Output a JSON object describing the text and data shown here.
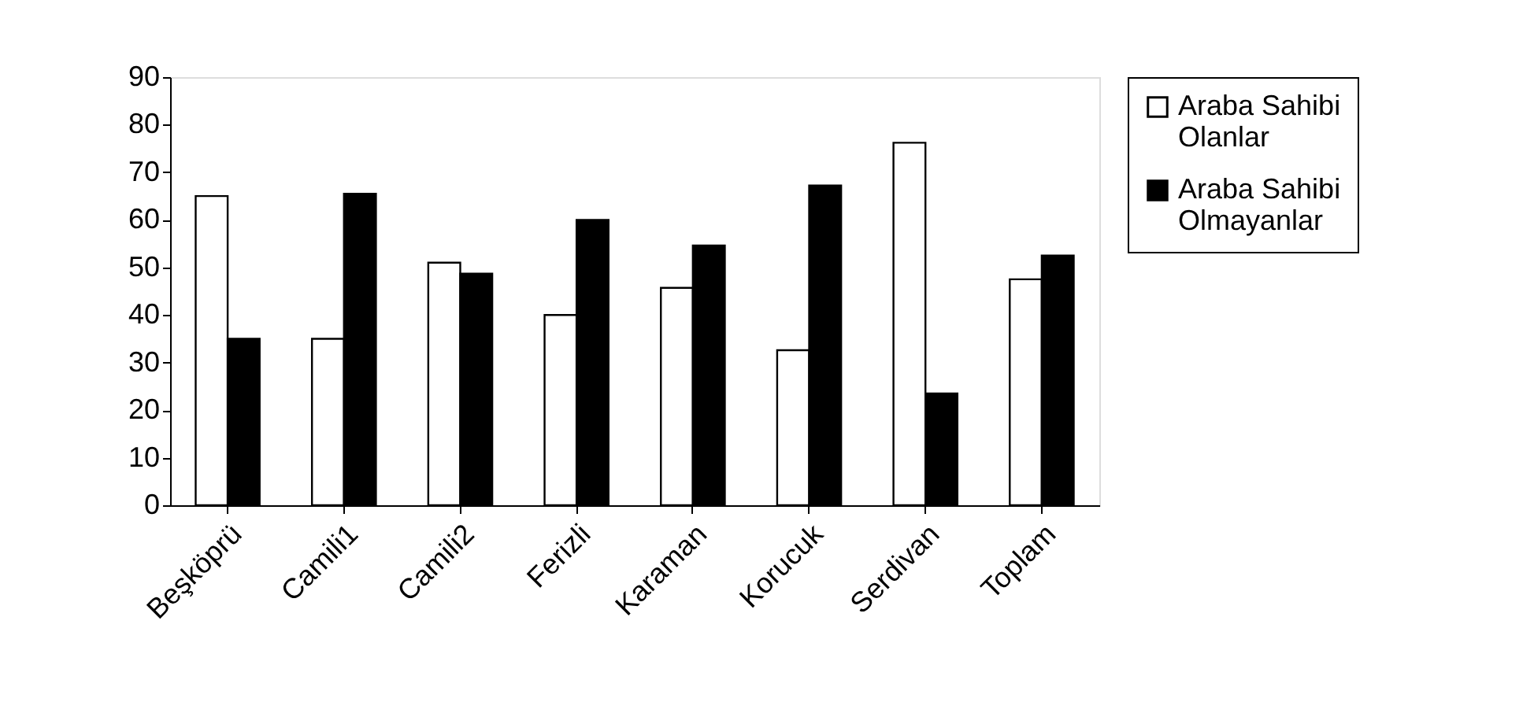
{
  "chart_data": {
    "type": "bar",
    "categories": [
      "Beşköprü",
      "Camili1",
      "Camili2",
      "Ferizli",
      "Karaman",
      "Korucuk",
      "Serdivan",
      "Toplam"
    ],
    "series": [
      {
        "name": "Araba Sahibi Olanlar",
        "color": "#ffffff",
        "values": [
          65,
          35,
          51,
          40,
          45.7,
          32.6,
          76.2,
          47.5
        ]
      },
      {
        "name": "Araba Sahibi Olmayanlar",
        "color": "#000000",
        "values": [
          35,
          65.5,
          48.7,
          60,
          54.6,
          67.2,
          23.5,
          52.5
        ]
      }
    ],
    "ylim": [
      0,
      90
    ],
    "yticks": [
      0,
      10,
      20,
      30,
      40,
      50,
      60,
      70,
      80,
      90
    ],
    "grid": false,
    "legend": "right"
  }
}
